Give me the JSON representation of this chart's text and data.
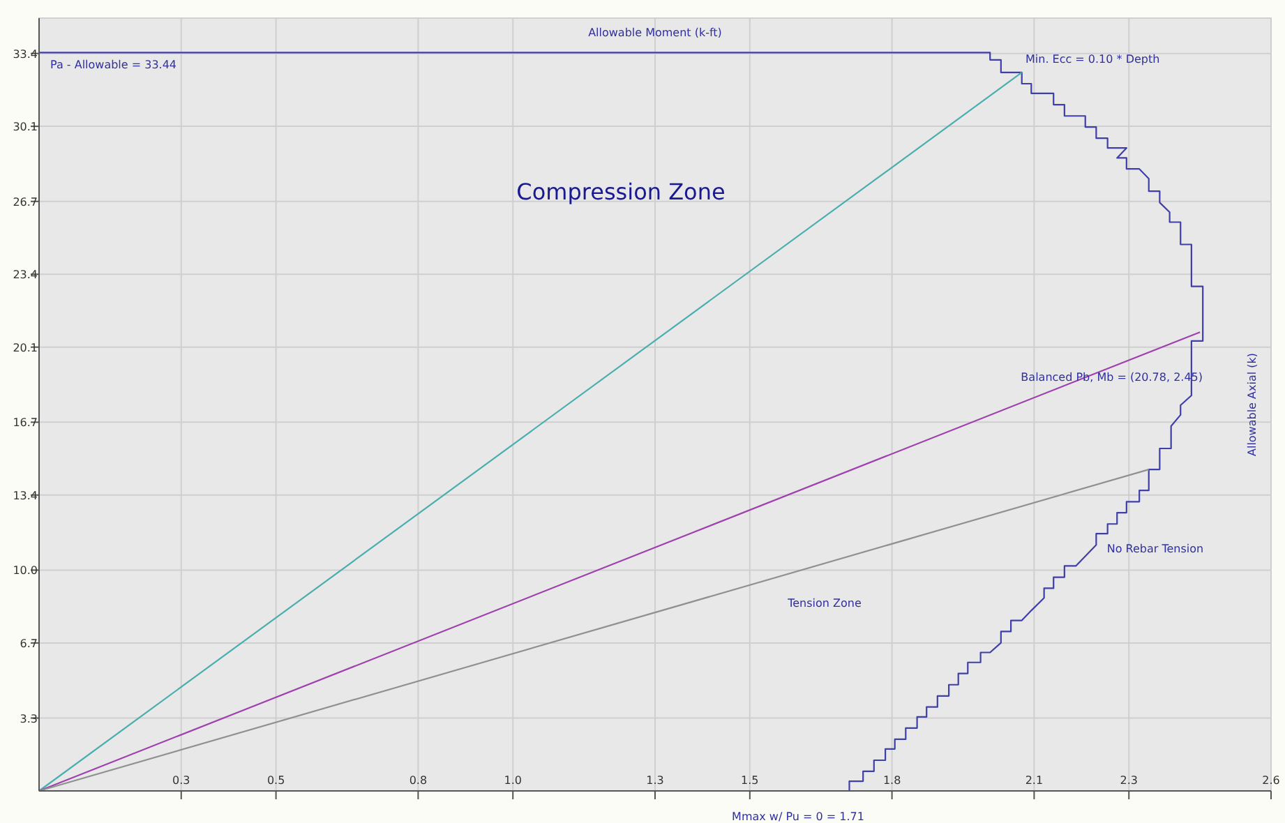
{
  "chart_data": {
    "type": "line",
    "xlabel": "Allowable Moment (k-ft)",
    "ylabel": "Allowable Axial  (k)",
    "xlim": [
      0,
      2.6
    ],
    "ylim": [
      0,
      35.0
    ],
    "xticks": [
      0.3,
      0.5,
      0.8,
      {
        "value": 1.0,
        "label": "1.0"
      },
      1.3,
      1.5,
      1.8,
      2.1,
      2.3,
      2.6
    ],
    "yticks": [
      3.3,
      6.7,
      {
        "value": 10.0,
        "label": "10.0"
      },
      13.4,
      16.7,
      20.1,
      23.4,
      26.7,
      30.1,
      33.4
    ],
    "grid": true,
    "marker": "none",
    "line_style": "solid",
    "series": [
      {
        "color": "#3f3fa8",
        "x": [
          0,
          2.007,
          2.007,
          2.03,
          2.03,
          2.074,
          2.074,
          2.094,
          2.094,
          2.141,
          2.141,
          2.164,
          2.164,
          2.208,
          2.208,
          2.231,
          2.231,
          2.255,
          2.255,
          2.295,
          2.275,
          2.295,
          2.295,
          2.322,
          2.342,
          2.342,
          2.365,
          2.365,
          2.386,
          2.386,
          2.409,
          2.409,
          2.432,
          2.432,
          2.456,
          2.456,
          2.432,
          2.432,
          2.409,
          2.409,
          2.389,
          2.389,
          2.365,
          2.365,
          2.342,
          2.342,
          2.322,
          2.322,
          2.295,
          2.295,
          2.275,
          2.275,
          2.255,
          2.255,
          2.231,
          2.231,
          2.208,
          2.188,
          2.164,
          2.164,
          2.141,
          2.141,
          2.121,
          2.121,
          2.094,
          2.074,
          2.051,
          2.051,
          2.03,
          2.03,
          2.007,
          1.987,
          1.987,
          1.96,
          1.96,
          1.94,
          1.94,
          1.92,
          1.92,
          1.896,
          1.896,
          1.873,
          1.873,
          1.853,
          1.853,
          1.829,
          1.829,
          1.806,
          1.806,
          1.786,
          1.786,
          1.762,
          1.762,
          1.739,
          1.739,
          1.71,
          1.71
        ],
        "values": [
          33.44,
          33.44,
          33.11,
          33.11,
          32.54,
          32.54,
          32.03,
          32.03,
          31.59,
          31.59,
          31.08,
          31.08,
          30.57,
          30.57,
          30.07,
          30.07,
          29.56,
          29.56,
          29.12,
          29.12,
          28.67,
          28.67,
          28.17,
          28.17,
          27.73,
          27.16,
          27.16,
          26.65,
          26.21,
          25.76,
          25.76,
          24.75,
          24.75,
          22.85,
          22.85,
          20.38,
          20.38,
          17.91,
          17.47,
          17.03,
          16.52,
          15.51,
          15.51,
          14.56,
          14.56,
          13.61,
          13.61,
          13.1,
          13.1,
          12.6,
          12.6,
          12.09,
          12.09,
          11.65,
          11.65,
          11.14,
          10.63,
          10.19,
          10.19,
          9.68,
          9.68,
          9.18,
          9.18,
          8.74,
          8.17,
          7.72,
          7.72,
          7.22,
          7.22,
          6.71,
          6.27,
          6.27,
          5.82,
          5.82,
          5.32,
          5.32,
          4.81,
          4.81,
          4.3,
          4.3,
          3.8,
          3.8,
          3.35,
          3.35,
          2.85,
          2.85,
          2.34,
          2.34,
          1.9,
          1.9,
          1.39,
          1.39,
          0.89,
          0.89,
          0.44,
          0.44,
          0
        ]
      },
      {
        "color": "#4aaeae",
        "x": [
          0,
          2.074
        ],
        "values": [
          0,
          32.54
        ]
      },
      {
        "color": "#a040b0",
        "x": [
          0,
          2.45
        ],
        "values": [
          0,
          20.78
        ]
      },
      {
        "color": "#909090",
        "x": [
          0,
          2.342
        ],
        "values": [
          0,
          14.56
        ]
      }
    ],
    "annotations": [
      "Compression Zone",
      "Tension Zone",
      "No Rebar Tension",
      "Balanced Pb, Mb = (20.78, 2.45)",
      "Min. Ecc = 0.10 * Depth",
      "Pa - Allowable = 33.44",
      "Mmax w/ Pu = 0 = 1.71"
    ]
  }
}
